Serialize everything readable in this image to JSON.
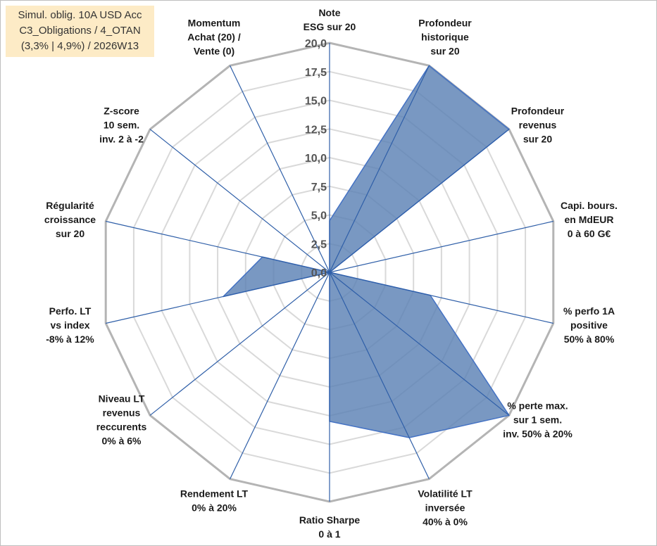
{
  "info_box": {
    "lines": [
      "Simul. oblig. 10A USD Acc",
      "C3_Obligations / 4_OTAN",
      "(3,3% | 4,9%) / 2026W13"
    ]
  },
  "colors": {
    "fill": "#5b81b4",
    "stroke": "#4472c4",
    "spoke": "#2f5fa8",
    "outer_ring": "#b4b4b4",
    "grid": "#d9d9d9",
    "info_bg": "#fdebc6"
  },
  "chart_data": {
    "type": "radar",
    "r_min": 0,
    "r_max": 20,
    "r_step": 2.5,
    "tick_labels": [
      "0,0",
      "2,5",
      "5,0",
      "7,5",
      "10,0",
      "12,5",
      "15,0",
      "17,5",
      "20,0"
    ],
    "axes": [
      {
        "label": [
          "Note",
          "ESG sur 20"
        ],
        "value": 4.5
      },
      {
        "label": [
          "Profondeur",
          "historique",
          "sur 20"
        ],
        "value": 20.0
      },
      {
        "label": [
          "Profondeur",
          "revenus",
          "sur 20"
        ],
        "value": 20.0
      },
      {
        "label": [
          "Capi. bours.",
          "en MdEUR",
          "0 à 60 G€"
        ],
        "value": 0.0
      },
      {
        "label": [
          "% perfo 1A",
          "positive",
          "50% à 80%"
        ],
        "value": 9.0
      },
      {
        "label": [
          "% perte max.",
          "sur 1 sem.",
          "inv. 50% à 20%"
        ],
        "value": 20.0
      },
      {
        "label": [
          "Volatilité LT",
          "inversée",
          "40% à 0%"
        ],
        "value": 16.0
      },
      {
        "label": [
          "Ratio Sharpe",
          "0 à 1"
        ],
        "value": 13.0
      },
      {
        "label": [
          "Rendement LT",
          "0% à 20%"
        ],
        "value": 0.0
      },
      {
        "label": [
          "Niveau LT",
          "revenus",
          "reccurents",
          "0% à 6%"
        ],
        "value": 0.0
      },
      {
        "label": [
          "Perfo. LT",
          "vs index",
          "-8% à 12%"
        ],
        "value": 9.5
      },
      {
        "label": [
          "Régularité",
          "croissance",
          "sur 20"
        ],
        "value": 6.0
      },
      {
        "label": [
          "Z-score",
          "10 sem.",
          "inv. 2 à -2"
        ],
        "value": 0.0
      },
      {
        "label": [
          "Momentum",
          "Achat (20) /",
          "Vente (0)"
        ],
        "value": 0.0
      }
    ]
  }
}
